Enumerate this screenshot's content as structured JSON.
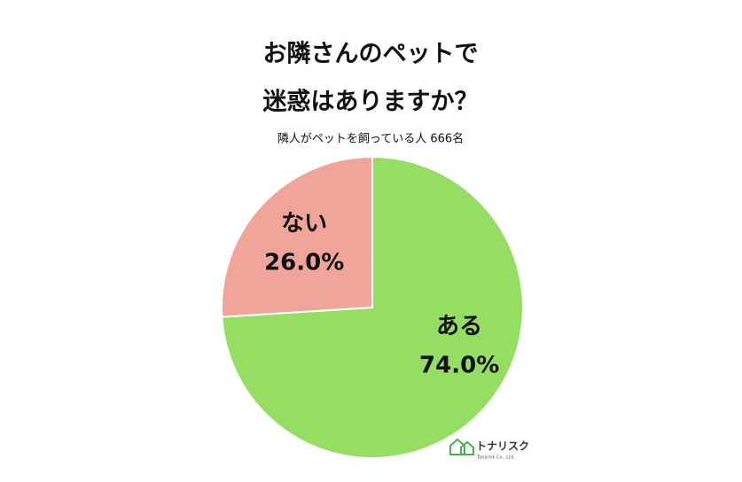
{
  "chart_data": {
    "type": "pie",
    "title": [
      "お隣さんのペットで",
      "迷惑はありますか？"
    ],
    "subtitle": "隣人がペットを飼っている人 666名",
    "categories": [
      "ある",
      "ない"
    ],
    "values": [
      74.0,
      26.0
    ],
    "value_labels": [
      "74.0%",
      "26.0%"
    ],
    "colors": [
      "#95dd63",
      "#f0a49a"
    ]
  },
  "logo": {
    "name": "トナリスク",
    "tagline": "Tonarisk Co., Ltd."
  }
}
